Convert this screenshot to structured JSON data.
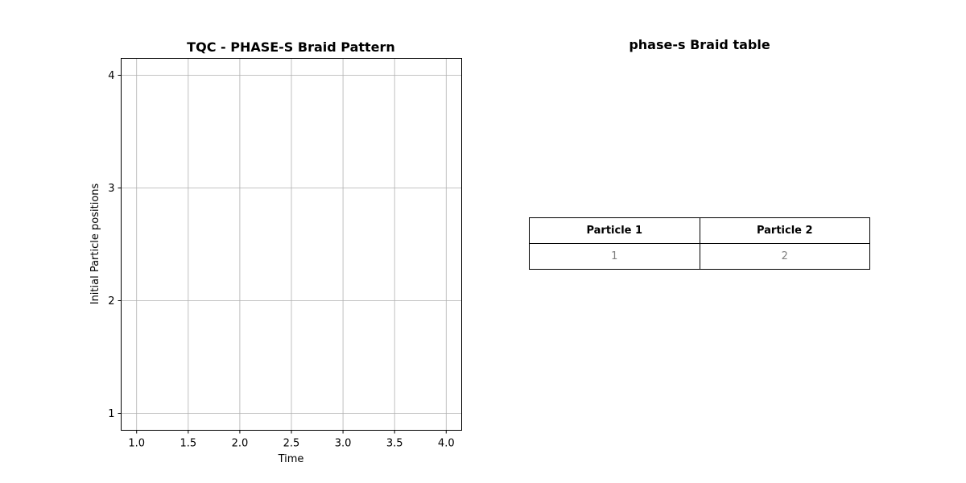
{
  "chart_data": [
    {
      "type": "line",
      "title": "TQC - PHASE-S Braid Pattern",
      "xlabel": "Time",
      "ylabel": "Initial Particle positions",
      "xlim": [
        0.85,
        4.15
      ],
      "ylim": [
        0.85,
        4.15
      ],
      "x_ticks": [
        1.0,
        1.5,
        2.0,
        2.5,
        3.0,
        3.5,
        4.0
      ],
      "x_tick_labels": [
        "1.0",
        "1.5",
        "2.0",
        "2.5",
        "3.0",
        "3.5",
        "4.0"
      ],
      "y_ticks": [
        1,
        2,
        3,
        4
      ],
      "y_tick_labels": [
        "1",
        "2",
        "3",
        "4"
      ],
      "grid": true,
      "series": []
    },
    {
      "type": "table",
      "title": "phase-s Braid table",
      "columns": [
        "Particle 1",
        "Particle 2"
      ],
      "rows": [
        [
          "1",
          "2"
        ]
      ]
    }
  ],
  "colors": {
    "grid": "#b0b0b0",
    "axis": "#000000",
    "cell_text": "#808080"
  }
}
